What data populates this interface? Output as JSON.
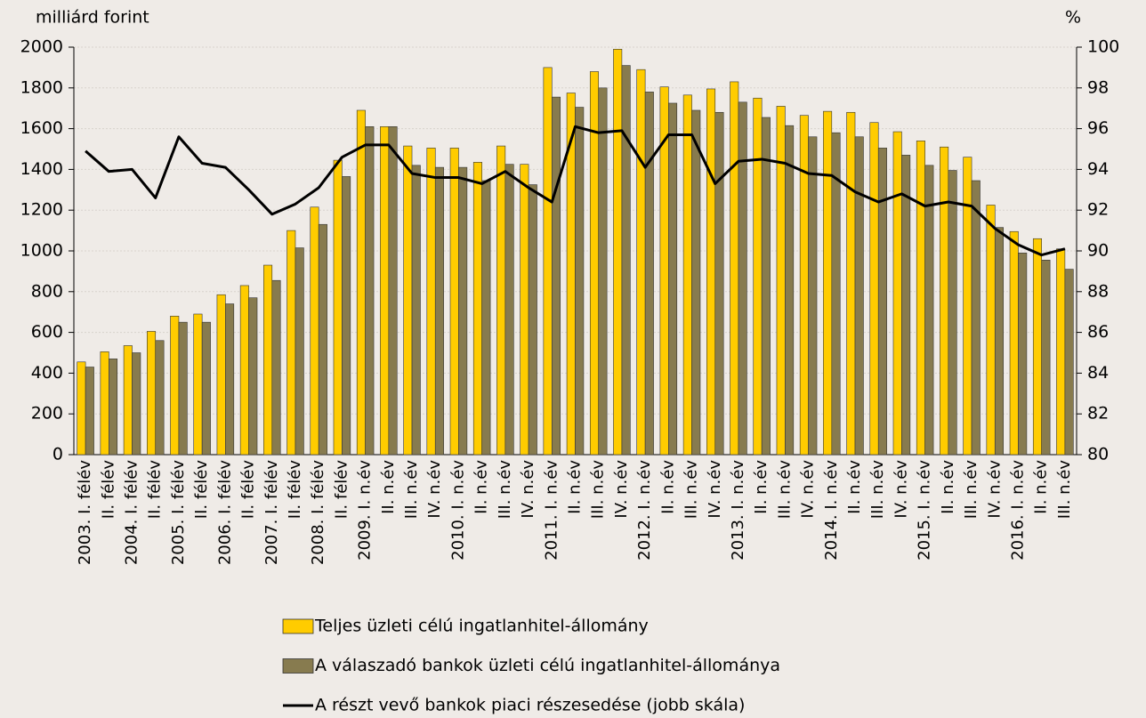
{
  "chart_data": {
    "type": "bar",
    "y_label": "milliárd forint",
    "y2_label": "%",
    "categories": [
      "2003. I. félév",
      "II. félév",
      "2004. I. félév",
      "II. félév",
      "2005. I. félév",
      "II. félév",
      "2006. I. félév",
      "II. félév",
      "2007. I. félév",
      "II. félév",
      "2008. I. félév",
      "II. félév",
      "2009. I. n.év",
      "II. n.év",
      "III. n.év",
      "IV. n.év",
      "2010. I. n.év",
      "II. n.év",
      "III. n.év",
      "IV. n.év",
      "2011. I. n.év",
      "II. n.év",
      "III. n.év",
      "IV. n.év",
      "2012. I. n.év",
      "II. n.év",
      "III. n.év",
      "IV. n.év",
      "2013. I. n.év",
      "II. n.év",
      "III. n.év",
      "IV. n.év",
      "2014. I. n.év",
      "II. n.év",
      "III. n.év",
      "IV. n.év",
      "2015. I. n.év",
      "II. n.év",
      "III. n.év",
      "IV. n.év",
      "2016. I. n.év",
      "II. n.év",
      "III. n.év"
    ],
    "series": [
      {
        "name": "Teljes üzleti célú ingatlanhitel-állomány",
        "type": "bar",
        "color": "#ffcc00",
        "values": [
          455,
          505,
          535,
          605,
          680,
          690,
          785,
          830,
          930,
          1100,
          1215,
          1445,
          1690,
          1610,
          1515,
          1505,
          1505,
          1435,
          1515,
          1425,
          1900,
          1775,
          1880,
          1990,
          1890,
          1805,
          1765,
          1795,
          1830,
          1750,
          1710,
          1665,
          1685,
          1680,
          1630,
          1585,
          1540,
          1510,
          1460,
          1225,
          1095,
          1060,
          1010
        ]
      },
      {
        "name": "A válaszadó bankok üzleti célú ingatlanhitel-állománya",
        "type": "bar",
        "color": "#877b4f",
        "values": [
          430,
          470,
          500,
          560,
          650,
          650,
          740,
          770,
          855,
          1015,
          1130,
          1365,
          1610,
          1610,
          1420,
          1410,
          1410,
          1345,
          1425,
          1325,
          1755,
          1705,
          1800,
          1910,
          1780,
          1725,
          1690,
          1680,
          1730,
          1655,
          1615,
          1560,
          1580,
          1560,
          1505,
          1470,
          1420,
          1395,
          1345,
          1115,
          990,
          955,
          910
        ]
      },
      {
        "name": "A részt vevő bankok piaci részesedése (jobb skála)",
        "type": "line",
        "axis": "y2",
        "color": "#000000",
        "values": [
          94.9,
          93.9,
          94.0,
          92.6,
          95.6,
          94.3,
          94.1,
          93.0,
          91.8,
          92.3,
          93.1,
          94.6,
          95.2,
          95.2,
          93.8,
          93.6,
          93.6,
          93.3,
          93.9,
          93.1,
          92.4,
          96.1,
          95.8,
          95.9,
          94.1,
          95.7,
          95.7,
          93.3,
          94.4,
          94.5,
          94.3,
          93.8,
          93.7,
          92.9,
          92.4,
          92.8,
          92.2,
          92.4,
          92.2,
          91.1,
          90.3,
          89.8,
          90.1
        ]
      }
    ],
    "ylim": [
      0,
      2000
    ],
    "yticks": [
      0,
      200,
      400,
      600,
      800,
      1000,
      1200,
      1400,
      1600,
      1800,
      2000
    ],
    "y2lim": [
      80,
      100
    ],
    "y2ticks": [
      80,
      82,
      84,
      86,
      88,
      90,
      92,
      94,
      96,
      98,
      100
    ],
    "grid": true,
    "legend": "bottom"
  }
}
